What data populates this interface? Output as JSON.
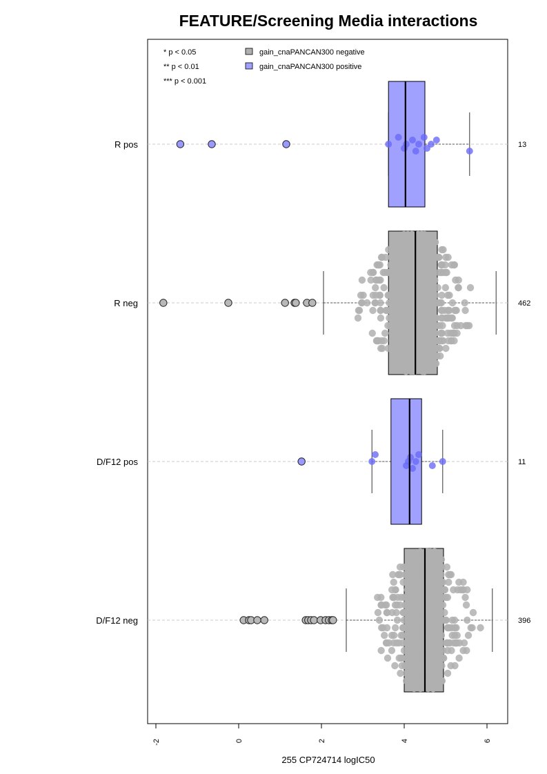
{
  "chart_data": {
    "type": "box-beeswarm",
    "title": "FEATURE/Screening Media interactions",
    "xlabel": "255 CP724714 logIC50",
    "xlim": [
      -2.2,
      6.5
    ],
    "xticks": [
      -2,
      0,
      2,
      4,
      6
    ],
    "xtick_labels": [
      "-2",
      "0",
      "2",
      "4",
      "6"
    ],
    "grid": "dashed horizontal guides at each group",
    "significance_legend": [
      "* p < 0.05",
      "** p < 0.01",
      "*** p < 0.001"
    ],
    "legend": {
      "placement": "top-left",
      "entries": [
        {
          "label": "gain_cnaPANCAN300 negative",
          "color": "#b0b0b0"
        },
        {
          "label": "gain_cnaPANCAN300 positive",
          "color": "#a0a0ff"
        }
      ]
    },
    "groups": [
      {
        "label": "R pos",
        "count": "13",
        "color": "#a0a0ff",
        "point_color": "#6a6af7",
        "box": {
          "whisker_low": 3.62,
          "q1": 3.62,
          "median": 4.03,
          "q3": 4.5,
          "whisker_high": 5.58
        },
        "outliers": [
          -1.41,
          -0.65,
          1.15
        ],
        "points": [
          3.62,
          3.86,
          4.0,
          4.05,
          4.2,
          4.28,
          4.35,
          4.48,
          4.55,
          4.65,
          4.78,
          5.58
        ]
      },
      {
        "label": "R neg",
        "count": "462",
        "color": "#b0b0b0",
        "point_color": "#b0b0b0",
        "box": {
          "whisker_low": 2.05,
          "q1": 3.62,
          "median": 4.27,
          "q3": 4.8,
          "whisker_high": 6.22
        },
        "outliers": [
          -1.82,
          -0.25,
          1.12,
          1.35,
          1.38,
          1.65,
          1.78
        ],
        "n_points": 462,
        "pts_range": [
          2.05,
          6.22
        ],
        "center": 4.27,
        "spread": 0.75
      },
      {
        "label": "D/F12 pos",
        "count": "11",
        "color": "#a0a0ff",
        "point_color": "#6a6af7",
        "box": {
          "whisker_low": 3.22,
          "q1": 3.68,
          "median": 4.13,
          "q3": 4.42,
          "whisker_high": 4.93
        },
        "outliers": [
          1.52
        ],
        "points": [
          3.22,
          3.3,
          4.05,
          4.1,
          4.15,
          4.2,
          4.28,
          4.35,
          4.68,
          4.93
        ]
      },
      {
        "label": "D/F12 neg",
        "count": "396",
        "color": "#b0b0b0",
        "point_color": "#b0b0b0",
        "box": {
          "whisker_low": 2.6,
          "q1": 4.0,
          "median": 4.5,
          "q3": 4.95,
          "whisker_high": 6.13
        },
        "outliers": [
          0.12,
          0.25,
          0.3,
          0.45,
          0.62,
          1.62,
          1.68,
          1.75,
          1.82,
          1.98,
          2.1,
          2.18,
          2.25,
          2.28
        ],
        "n_points": 396,
        "pts_range": [
          2.6,
          6.13
        ],
        "center": 4.5,
        "spread": 0.7
      }
    ]
  }
}
